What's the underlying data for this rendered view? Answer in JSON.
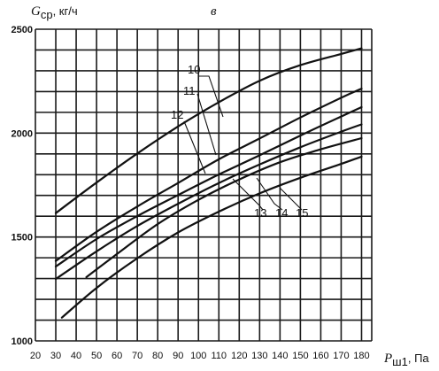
{
  "chart_data": {
    "type": "line",
    "panel_label": "в",
    "ylabel": {
      "symbol": "G",
      "subscript": "ср",
      "unit": ", кг/ч"
    },
    "xlabel": {
      "symbol": "P",
      "subscript": "ш1",
      "unit": ", Па"
    },
    "xlim": [
      20,
      185
    ],
    "ylim": [
      1000,
      2500
    ],
    "x_ticks": [
      "20",
      "30",
      "40",
      "50",
      "60",
      "70",
      "80",
      "90",
      "100",
      "110",
      "120",
      "130",
      "140",
      "150",
      "160",
      "170",
      "180"
    ],
    "y_ticks": [
      "1000",
      "1500",
      "2000",
      "2500"
    ],
    "grid": true,
    "series": [
      {
        "name": "10",
        "x": [
          30,
          50,
          70,
          90,
          110,
          130,
          150,
          170,
          180
        ],
        "y": [
          1615,
          1762,
          1902,
          2032,
          2149,
          2252,
          2327,
          2381,
          2408
        ]
      },
      {
        "name": "11",
        "x": [
          30,
          50,
          70,
          90,
          110,
          130,
          150,
          170,
          180
        ],
        "y": [
          1385,
          1525,
          1647,
          1760,
          1874,
          1974,
          2075,
          2170,
          2214
        ]
      },
      {
        "name": "12",
        "x": [
          30,
          50,
          70,
          90,
          110,
          130,
          150,
          170,
          180
        ],
        "y": [
          1358,
          1490,
          1601,
          1702,
          1801,
          1893,
          1988,
          2080,
          2125
        ]
      },
      {
        "name": "13",
        "x": [
          30,
          50,
          70,
          90,
          110,
          130,
          150,
          170,
          180
        ],
        "y": [
          1298,
          1431,
          1553,
          1660,
          1760,
          1849,
          1932,
          2007,
          2042
        ]
      },
      {
        "name": "14",
        "x": [
          45,
          60,
          80,
          100,
          120,
          140,
          160,
          180
        ],
        "y": [
          1307,
          1418,
          1562,
          1679,
          1777,
          1860,
          1922,
          1976
        ]
      },
      {
        "name": "15",
        "x": [
          33,
          50,
          70,
          90,
          110,
          130,
          150,
          170,
          180
        ],
        "y": [
          1112,
          1255,
          1398,
          1522,
          1622,
          1710,
          1785,
          1852,
          1887
        ]
      }
    ]
  }
}
